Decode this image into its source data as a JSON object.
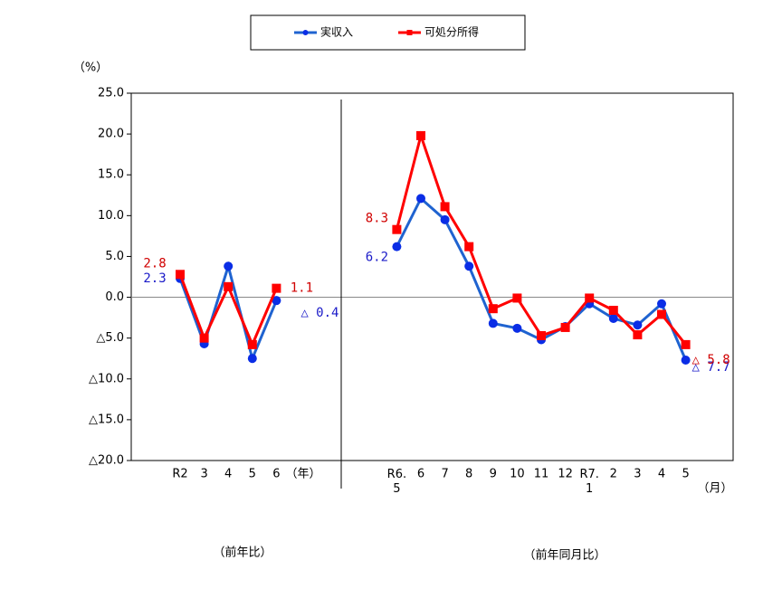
{
  "chart_data": {
    "type": "line",
    "y_unit": "（%）",
    "captions": [
      "（前年比）",
      "（前年同月比）"
    ],
    "x_unit_labels": [
      "（年）",
      "（月）"
    ],
    "categories": [
      "R2",
      "3",
      "4",
      "5",
      "6",
      null,
      null,
      null,
      null,
      "R6.\n5",
      "6",
      "7",
      "8",
      "9",
      "10",
      "11",
      "12",
      "R7.\n1",
      "2",
      "3",
      "4",
      "5"
    ],
    "ylim": [
      -20,
      25
    ],
    "yticks": [
      {
        "value": 25,
        "label": "25.0"
      },
      {
        "value": 20,
        "label": "20.0"
      },
      {
        "value": 15,
        "label": "15.0"
      },
      {
        "value": 10,
        "label": "10.0"
      },
      {
        "value": 5,
        "label": "5.0"
      },
      {
        "value": 0,
        "label": "0.0"
      },
      {
        "value": -5,
        "label": "△5.0"
      },
      {
        "value": -10,
        "label": "△10.0"
      },
      {
        "value": -15,
        "label": "△15.0"
      },
      {
        "value": -20,
        "label": "△20.0"
      }
    ],
    "series": [
      {
        "name": "実収入",
        "color": "#1f63d0",
        "values": [
          2.3,
          -5.7,
          3.8,
          -7.5,
          -0.4,
          null,
          null,
          null,
          null,
          6.2,
          12.1,
          9.5,
          3.8,
          -3.2,
          -3.8,
          -5.2,
          -3.6,
          -0.8,
          -2.6,
          -3.4,
          -0.8,
          -7.7
        ],
        "value_labels": [
          "2.3",
          null,
          null,
          null,
          "△ 0.4",
          null,
          null,
          null,
          null,
          "6.2",
          null,
          null,
          null,
          null,
          null,
          null,
          null,
          null,
          null,
          null,
          null,
          "△ 7.7"
        ]
      },
      {
        "name": "可処分所得",
        "color": "#ff0000",
        "values": [
          2.8,
          -5.0,
          1.3,
          -5.8,
          1.1,
          null,
          null,
          null,
          null,
          8.3,
          19.8,
          11.1,
          6.2,
          -1.4,
          -0.1,
          -4.7,
          -3.7,
          -0.1,
          -1.6,
          -4.6,
          -2.1,
          -5.8
        ],
        "value_labels": [
          "2.8",
          null,
          null,
          null,
          "1.1",
          null,
          null,
          null,
          null,
          "8.3",
          null,
          null,
          null,
          null,
          null,
          null,
          null,
          null,
          null,
          null,
          null,
          "△ 5.8"
        ]
      }
    ]
  }
}
